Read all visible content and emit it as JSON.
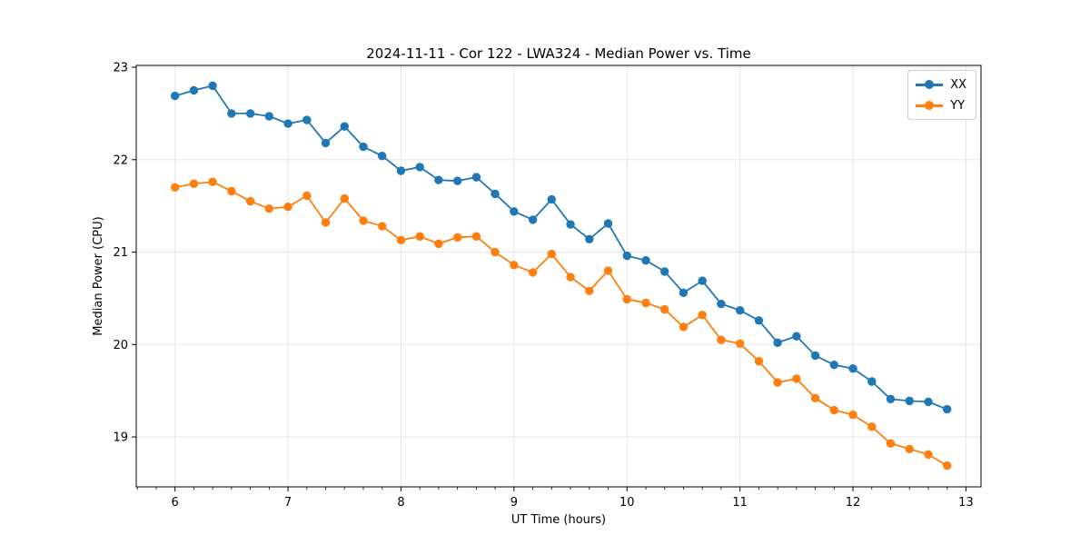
{
  "title": "2024-11-11 - Cor 122 - LWA324 - Median Power vs. Time",
  "legend": {
    "position": "top-right",
    "items": [
      {
        "label": "XX",
        "color": "#1f77b4"
      },
      {
        "label": "YY",
        "color": "#ff7f0e"
      }
    ]
  },
  "chart_data": {
    "type": "line",
    "title": "2024-11-11 - Cor 122 - LWA324 - Median Power vs. Time",
    "xlabel": "UT Time (hours)",
    "ylabel": "Median Power (CPU)",
    "xlim": [
      5.657,
      13.133
    ],
    "ylim": [
      18.46,
      23.02
    ],
    "x_ticks": [
      6,
      7,
      8,
      9,
      10,
      11,
      12,
      13
    ],
    "y_ticks": [
      19,
      20,
      21,
      22,
      23
    ],
    "x_minor_step_hours": 0.1667,
    "grid": true,
    "marker": "circle",
    "x": [
      6.0,
      6.167,
      6.333,
      6.5,
      6.667,
      6.833,
      7.0,
      7.167,
      7.333,
      7.5,
      7.667,
      7.833,
      8.0,
      8.167,
      8.333,
      8.5,
      8.667,
      8.833,
      9.0,
      9.167,
      9.333,
      9.5,
      9.667,
      9.833,
      10.0,
      10.167,
      10.333,
      10.5,
      10.667,
      10.833,
      11.0,
      11.167,
      11.333,
      11.5,
      11.667,
      11.833,
      12.0,
      12.167,
      12.333,
      12.5,
      12.667,
      12.833
    ],
    "series": [
      {
        "name": "XX",
        "color": "#1f77b4",
        "values": [
          22.69,
          22.75,
          22.8,
          22.5,
          22.5,
          22.47,
          22.39,
          22.43,
          22.18,
          22.36,
          22.14,
          22.04,
          21.88,
          21.92,
          21.78,
          21.77,
          21.81,
          21.63,
          21.44,
          21.35,
          21.57,
          21.3,
          21.14,
          21.31,
          20.96,
          20.91,
          20.79,
          20.56,
          20.69,
          20.44,
          20.37,
          20.26,
          20.02,
          20.09,
          19.88,
          19.78,
          19.74,
          19.6,
          19.41,
          19.39,
          19.38,
          19.3
        ]
      },
      {
        "name": "YY",
        "color": "#ff7f0e",
        "values": [
          21.7,
          21.74,
          21.76,
          21.66,
          21.55,
          21.47,
          21.49,
          21.61,
          21.32,
          21.58,
          21.34,
          21.28,
          21.13,
          21.17,
          21.09,
          21.16,
          21.17,
          21.0,
          20.86,
          20.78,
          20.98,
          20.73,
          20.58,
          20.8,
          20.49,
          20.45,
          20.38,
          20.19,
          20.32,
          20.05,
          20.01,
          19.82,
          19.59,
          19.63,
          19.42,
          19.29,
          19.24,
          19.11,
          18.93,
          18.87,
          18.81,
          18.69
        ]
      }
    ]
  }
}
